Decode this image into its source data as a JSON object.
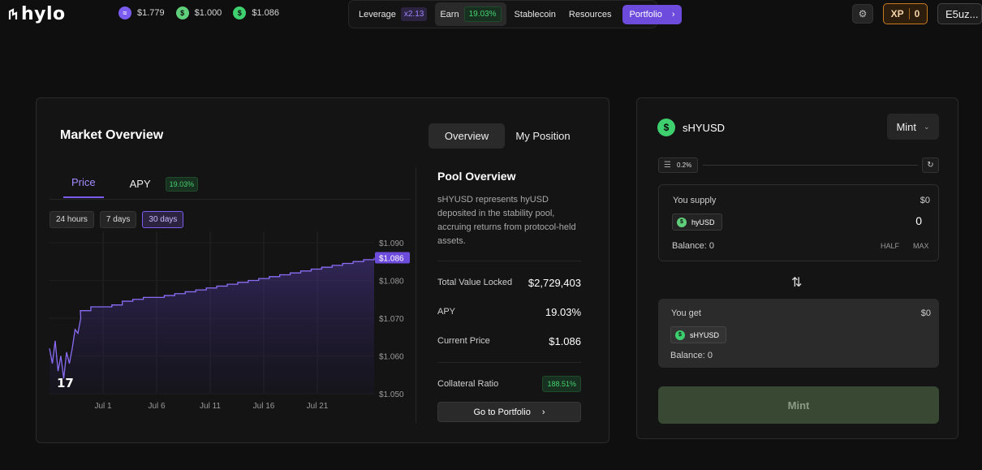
{
  "brand": {
    "logo_text": "hylo"
  },
  "prices": [
    {
      "icon": "hyusd-leverage-token-icon",
      "value": "$1.779"
    },
    {
      "icon": "hyusd-token-icon",
      "value": "$1.000"
    },
    {
      "icon": "shyusd-token-icon",
      "value": "$1.086"
    }
  ],
  "nav": {
    "leverage": "Leverage",
    "leverage_badge": "x2.13",
    "earn": "Earn",
    "earn_badge": "19.03%",
    "stablecoin": "Stablecoin",
    "resources": "Resources",
    "portfolio": "Portfolio"
  },
  "header_right": {
    "xp_label": "XP",
    "xp_value": "0",
    "wallet": "E5uz..."
  },
  "market": {
    "title": "Market Overview",
    "toggle": [
      "Overview",
      "My Position"
    ],
    "tabs": {
      "price": "Price",
      "apy": "APY",
      "apy_badge": "19.03%"
    },
    "ranges": [
      "24 hours",
      "7 days",
      "30 days"
    ],
    "active_range": "30 days"
  },
  "chart_data": {
    "type": "area",
    "title": "",
    "xlabel": "",
    "ylabel": "",
    "x_ticks": [
      "Jul 1",
      "Jul 6",
      "Jul 11",
      "Jul 16",
      "Jul 21"
    ],
    "y_ticks": [
      "$1.090",
      "$1.080",
      "$1.070",
      "$1.060",
      "$1.050"
    ],
    "ylim": [
      1.05,
      1.093
    ],
    "current_value_label": "$1.086",
    "series": [
      {
        "values": [
          1.062,
          1.058,
          1.064,
          1.056,
          1.06,
          1.054,
          1.061,
          1.058,
          1.062,
          1.067,
          1.066,
          1.07,
          1.072,
          1.073,
          1.073,
          1.0735,
          1.0745,
          1.075,
          1.0755,
          1.0755,
          1.076,
          1.0765,
          1.077,
          1.0775,
          1.078,
          1.0785,
          1.079,
          1.0795,
          1.08,
          1.0805,
          1.081,
          1.0815,
          1.082,
          1.0825,
          1.083,
          1.0835,
          1.084,
          1.0845,
          1.085,
          1.0855,
          1.086
        ]
      }
    ]
  },
  "pool": {
    "title": "Pool Overview",
    "description": "sHYUSD represents hyUSD deposited in the stability pool, accruing returns from protocol-held assets.",
    "rows": [
      {
        "label": "Total Value Locked",
        "value": "$2,729,403"
      },
      {
        "label": "APY",
        "value": "19.03%"
      },
      {
        "label": "Current Price",
        "value": "$1.086"
      }
    ],
    "collateral_label": "Collateral Ratio",
    "collateral_value": "188.51%",
    "cta": "Go to Portfolio"
  },
  "swap": {
    "token_name": "sHYUSD",
    "mode": "Mint",
    "slippage": "0.2%",
    "supply": {
      "label": "You supply",
      "usd": "$0",
      "token": "hyUSD",
      "amount": "0",
      "balance": "Balance: 0",
      "half": "HALF",
      "max": "MAX"
    },
    "get": {
      "label": "You get",
      "usd": "$0",
      "token": "sHYUSD",
      "balance": "Balance: 0"
    },
    "submit": "Mint"
  },
  "colors": {
    "accent": "#7b5cf0",
    "positive": "#47d070",
    "background": "#0f0f0f",
    "card": "#141414"
  }
}
